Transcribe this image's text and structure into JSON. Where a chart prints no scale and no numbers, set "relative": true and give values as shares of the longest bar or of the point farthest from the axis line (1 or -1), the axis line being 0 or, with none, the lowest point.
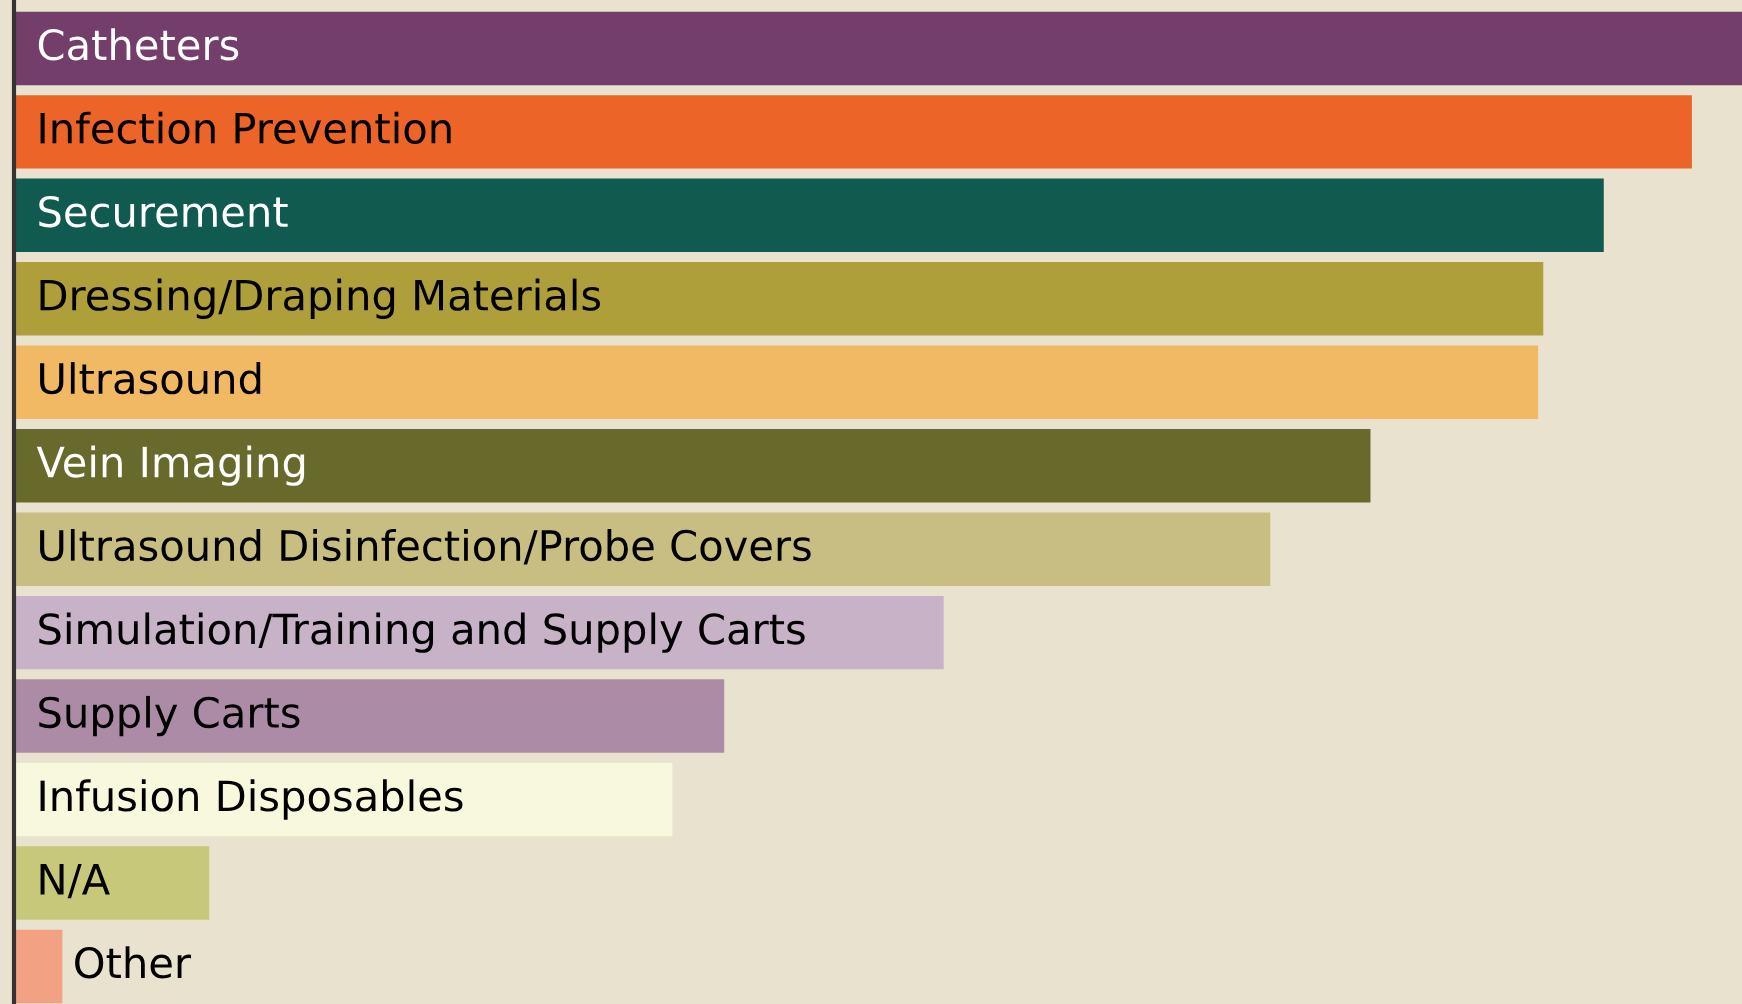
{
  "chart_data": {
    "type": "bar",
    "orientation": "horizontal",
    "relative": true,
    "categories": [
      "Catheters",
      "Infection Prevention",
      "Securement",
      "Dressing/Draping Materials",
      "Ultrasound",
      "Vein Imaging",
      "Ultrasound Disinfection/Probe Covers",
      "Simulation/Training and Supply Carts",
      "Supply Carts",
      "Infusion Disposables",
      "N/A",
      "Other"
    ],
    "values": [
      1,
      0.971,
      0.92,
      0.885,
      0.882,
      0.785,
      0.727,
      0.538,
      0.411,
      0.381,
      0.113,
      0.028
    ],
    "colors": [
      "#733e6a",
      "#ec6428",
      "#115a4f",
      "#ae9f3a",
      "#f2b964",
      "#686a2c",
      "#c9be82",
      "#c7b2c8",
      "#ac8ba6",
      "#f8f8dc",
      "#c8c87a",
      "#f2a182"
    ]
  }
}
